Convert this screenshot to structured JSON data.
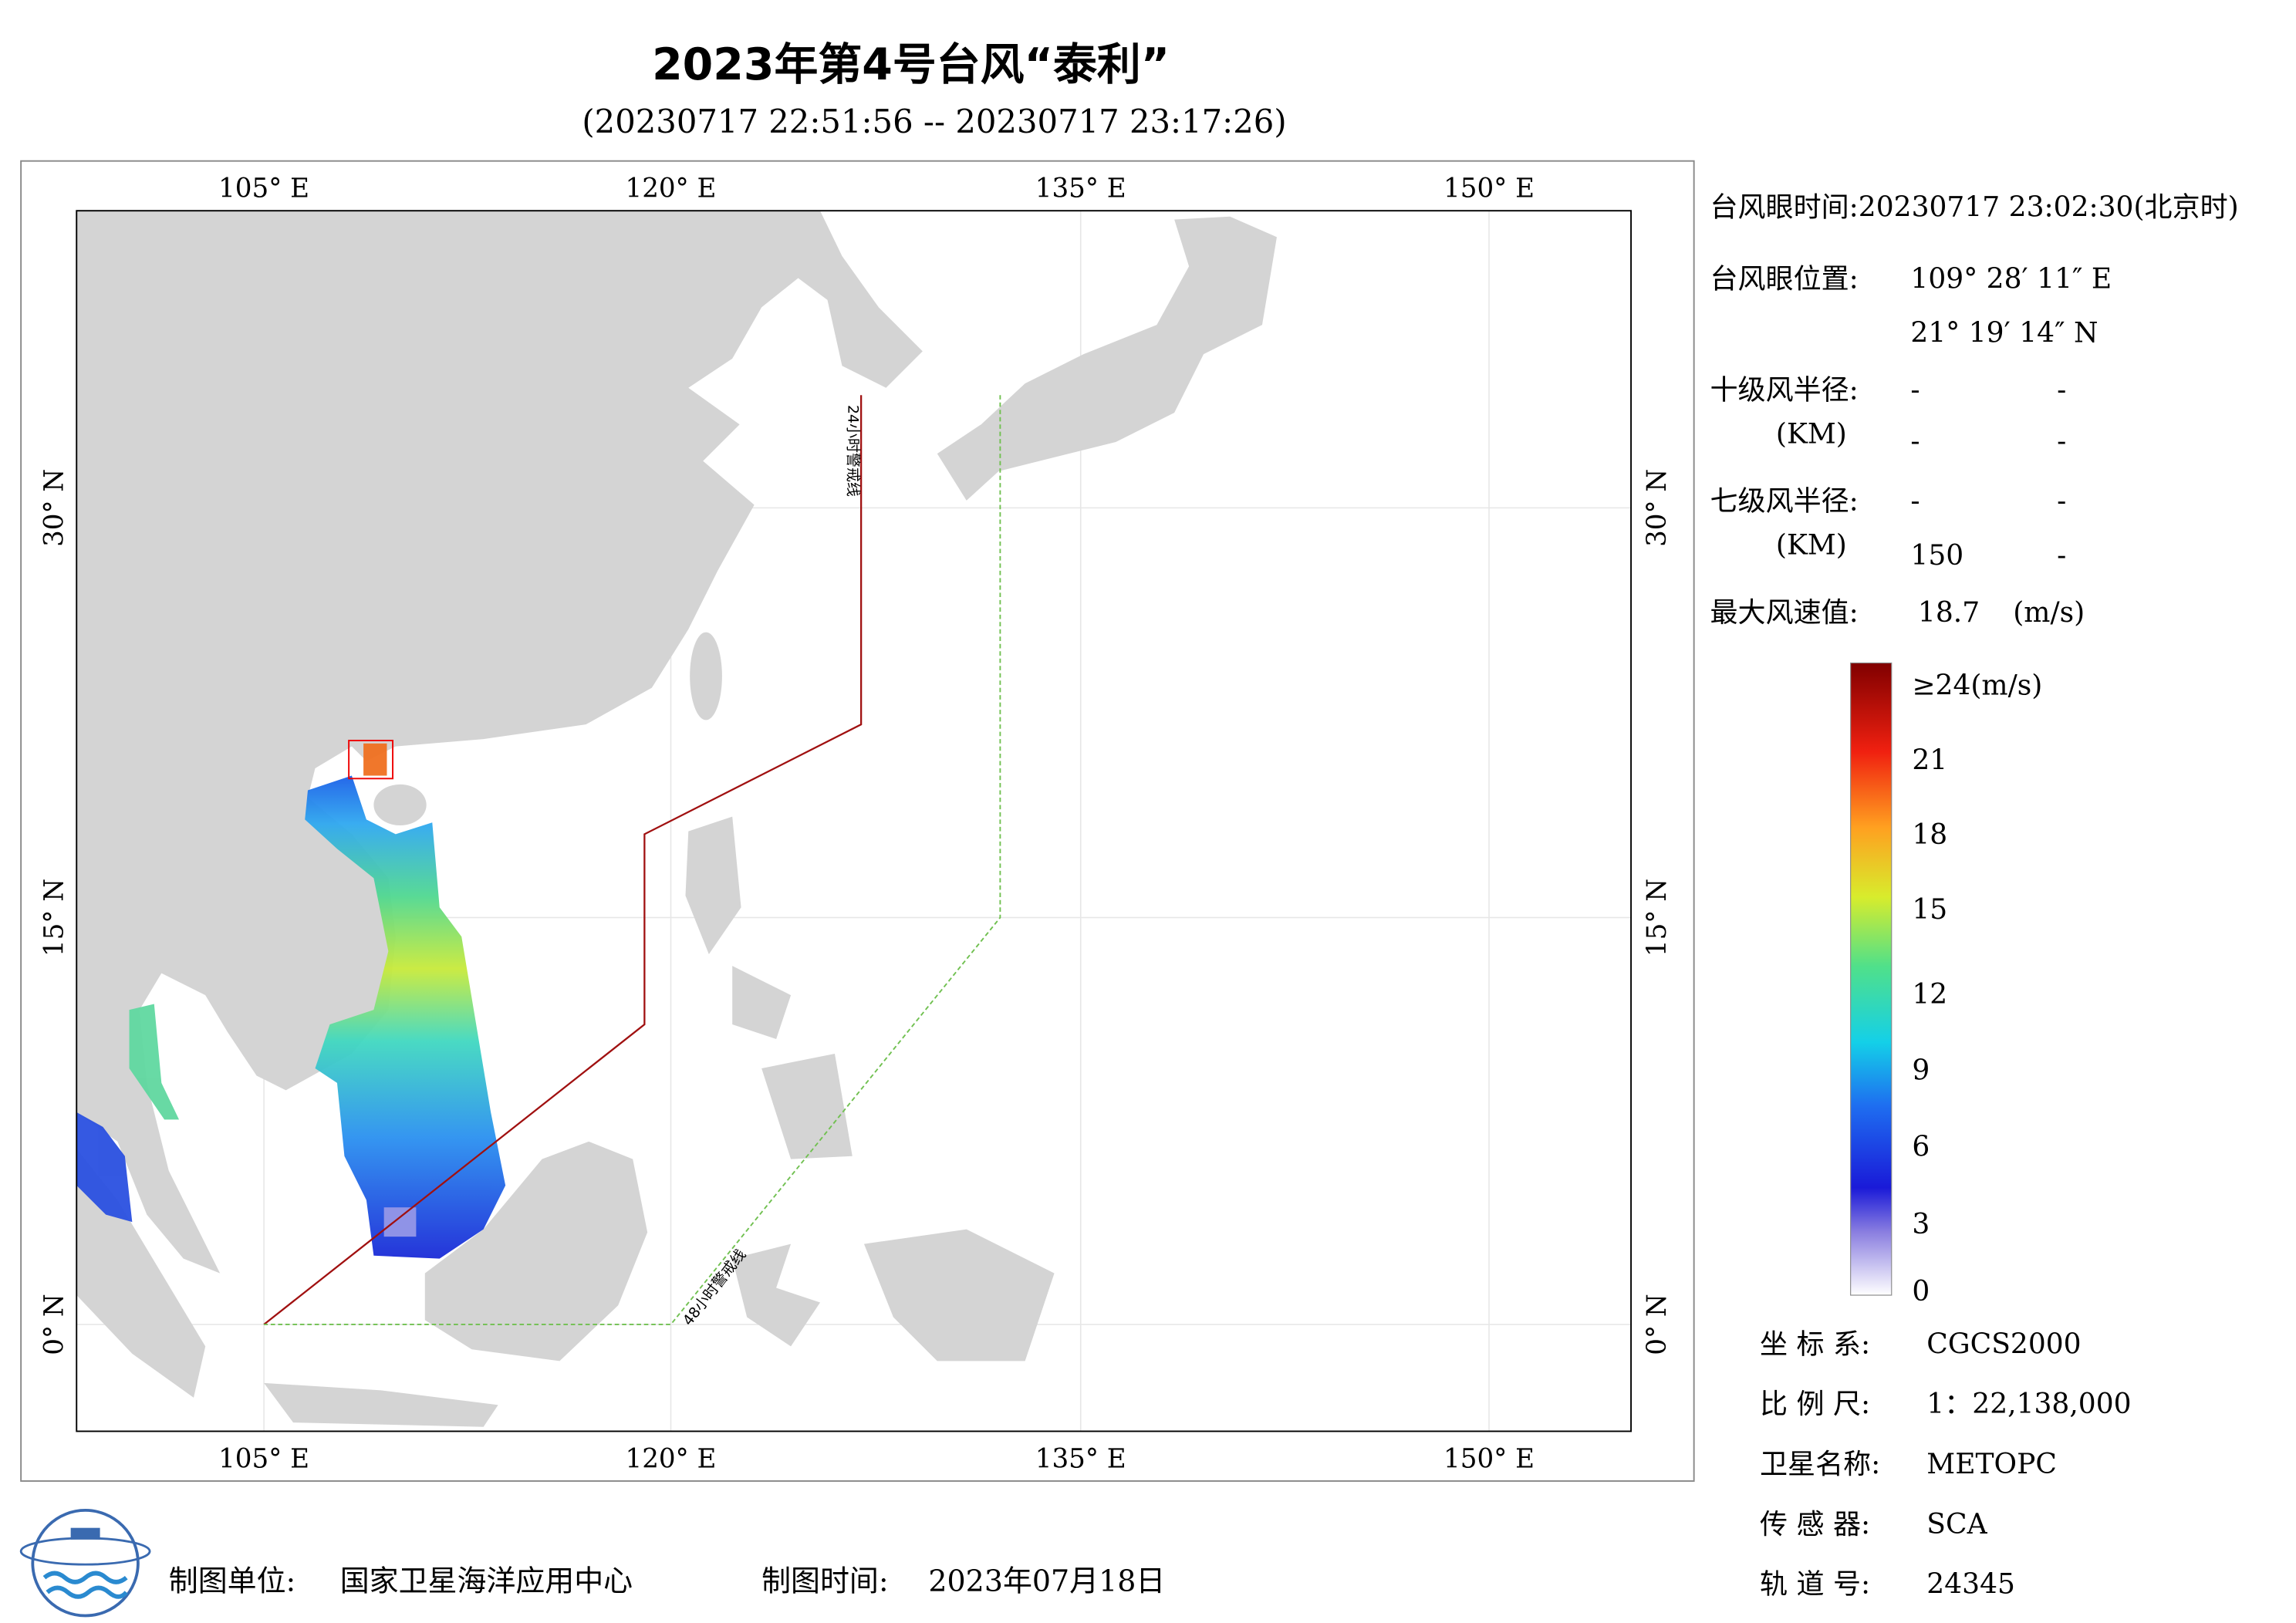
{
  "title": "2023年第4号台风“泰利”",
  "subtitle": "(20230717 22:51:56 -- 20230717 23:17:26)",
  "map": {
    "lon_labels": [
      "105° E",
      "120° E",
      "135° E",
      "150° E"
    ],
    "lat_labels": [
      "30° N",
      "15° N",
      "0° N"
    ],
    "line_24h": "24小时警戒线",
    "line_48h": "48小时警戒线"
  },
  "info": {
    "eye_time": "台风眼时间:20230717 23:02:30(北京时)",
    "eye_position": {
      "label": "台风眼位置:",
      "lon": "109° 28′ 11″ E",
      "lat": "21° 19′ 14″ N"
    },
    "r10": {
      "label": "十级风半径:",
      "unit": "(KM)",
      "values": [
        [
          "-",
          "-"
        ],
        [
          "-",
          "-"
        ]
      ]
    },
    "r7": {
      "label": "七级风半径:",
      "unit": "(KM)",
      "values": [
        [
          "-",
          "-"
        ],
        [
          "150",
          "-"
        ]
      ]
    },
    "max_wind": {
      "label": "最大风速值:",
      "value": "18.7",
      "unit": "(m/s)"
    }
  },
  "colorbar": {
    "labels": [
      "≥24(m/s)",
      "21",
      "18",
      "15",
      "12",
      "9",
      "6",
      "3",
      "0"
    ]
  },
  "meta": [
    {
      "label": "坐 标 系:",
      "value": "CGCS2000"
    },
    {
      "label": "比 例 尺:",
      "value": "1：22,138,000"
    },
    {
      "label": "卫星名称:",
      "value": "METOPC"
    },
    {
      "label": "传 感 器:",
      "value": "SCA"
    },
    {
      "label": "轨 道 号:",
      "value": "24345"
    }
  ],
  "footer": {
    "unit_label": "制图单位:",
    "unit": "国家卫星海洋应用中心",
    "time_label": "制图时间:",
    "time": "2023年07月18日"
  }
}
